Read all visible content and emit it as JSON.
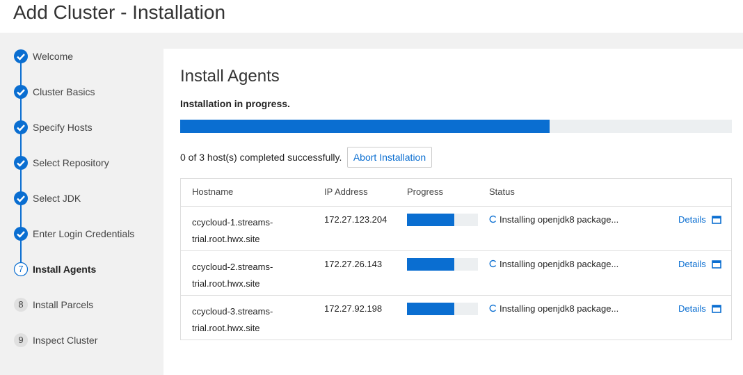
{
  "header": {
    "title": "Add Cluster - Installation"
  },
  "steps": [
    {
      "label": "Welcome"
    },
    {
      "label": "Cluster Basics"
    },
    {
      "label": "Specify Hosts"
    },
    {
      "label": "Select Repository"
    },
    {
      "label": "Select JDK"
    },
    {
      "label": "Enter Login Credentials"
    },
    {
      "label": "Install Agents",
      "number": 7,
      "active": true
    },
    {
      "label": "Install Parcels",
      "number": 8
    },
    {
      "label": "Inspect Cluster",
      "number": 9
    }
  ],
  "main": {
    "title": "Install Agents",
    "status": "Installation in progress.",
    "progress": 67,
    "summary": "0 of 3 host(s) completed successfully.",
    "abort_button": "Abort Installation"
  },
  "table": {
    "columns": [
      "Hostname",
      "IP Address",
      "Progress",
      "Status"
    ],
    "rows": [
      {
        "hostname": "ccycloud-1.streams-trial.root.hwx.site",
        "ip": "172.27.123.204",
        "progress": 67,
        "status": "Installing openjdk8 package...",
        "details": "Details"
      },
      {
        "hostname": "ccycloud-2.streams-trial.root.hwx.site",
        "ip": "172.27.26.143",
        "progress": 67,
        "status": "Installing openjdk8 package...",
        "details": "Details"
      },
      {
        "hostname": "ccycloud-3.streams-trial.root.hwx.site",
        "ip": "172.27.92.198",
        "progress": 67,
        "status": "Installing openjdk8 package...",
        "details": "Details"
      }
    ]
  }
}
